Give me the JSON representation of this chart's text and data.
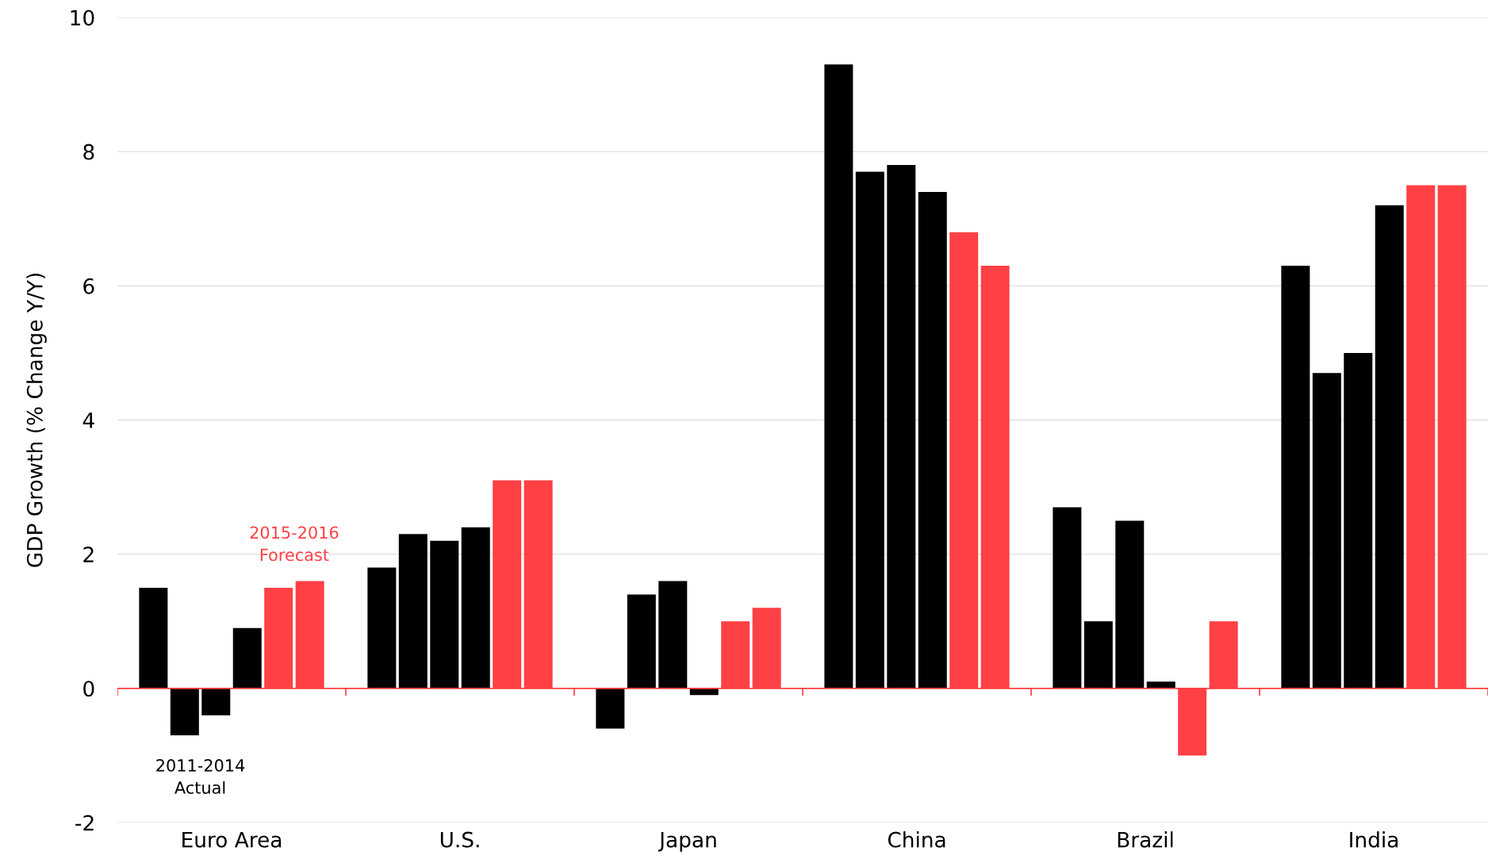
{
  "chart_data": {
    "type": "bar",
    "ylabel": "GDP Growth (% Change Y/Y)",
    "categories": [
      "Euro Area",
      "U.S.",
      "Japan",
      "China",
      "Brazil",
      "India"
    ],
    "series": [
      {
        "color": "#000000",
        "values": [
          1.5,
          1.8,
          -0.6,
          9.3,
          2.7,
          6.3
        ]
      },
      {
        "color": "#000000",
        "values": [
          -0.7,
          2.3,
          1.4,
          7.7,
          1.0,
          4.7
        ]
      },
      {
        "color": "#000000",
        "values": [
          -0.4,
          2.2,
          1.6,
          7.8,
          2.5,
          5.0
        ]
      },
      {
        "color": "#000000",
        "values": [
          0.9,
          2.4,
          -0.1,
          7.4,
          0.1,
          7.2
        ]
      },
      {
        "color": "#ff4045",
        "values": [
          1.5,
          3.1,
          1.0,
          6.8,
          -1.0,
          7.5
        ]
      },
      {
        "color": "#ff4045",
        "values": [
          1.6,
          3.1,
          1.2,
          6.3,
          1.0,
          7.5
        ]
      }
    ],
    "ylim": [
      -2,
      10
    ],
    "yticks": [
      -2,
      0,
      2,
      4,
      6,
      8,
      10
    ],
    "grid": "y",
    "ref_lines": [
      {
        "axis": "y",
        "value": 0,
        "color": "#ff4045"
      }
    ],
    "annotations": [
      "2011-2014\nActual",
      "2015-2016\nForecast"
    ]
  }
}
